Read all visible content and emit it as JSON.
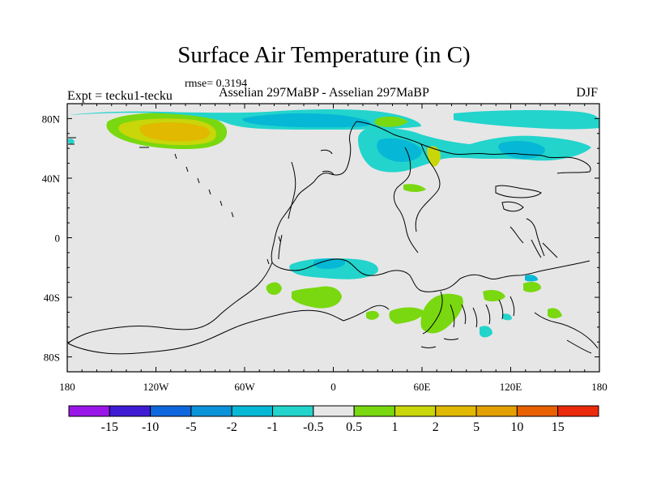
{
  "title": "Surface Air Temperature (in C)",
  "stats": {
    "rmse_text": "rmse= 0.3194"
  },
  "labels": {
    "left": "Expt = tecku1-tecku",
    "center": "Asselian 297MaBP - Asselian 297MaBP",
    "right": "DJF"
  },
  "map": {
    "lon_ticks": [
      "180",
      "120W",
      "60W",
      "0",
      "60E",
      "120E",
      "180"
    ],
    "lat_ticks": [
      "80N",
      "40N",
      "0",
      "40S",
      "80S"
    ],
    "background_color": "#e6e6e6"
  },
  "colorbar": {
    "colors": [
      "#9a16e8",
      "#3f1bd3",
      "#0f67dd",
      "#0b93d9",
      "#06b8d6",
      "#22d4cc",
      "#e6e6e6",
      "#79d80f",
      "#c8d60a",
      "#e1b900",
      "#e4a000",
      "#e86000",
      "#eb2a0b"
    ],
    "labels": [
      "-15",
      "-10",
      "-5",
      "-2",
      "-1",
      "-0.5",
      "0.5",
      "1",
      "2",
      "5",
      "10",
      "15"
    ]
  }
}
